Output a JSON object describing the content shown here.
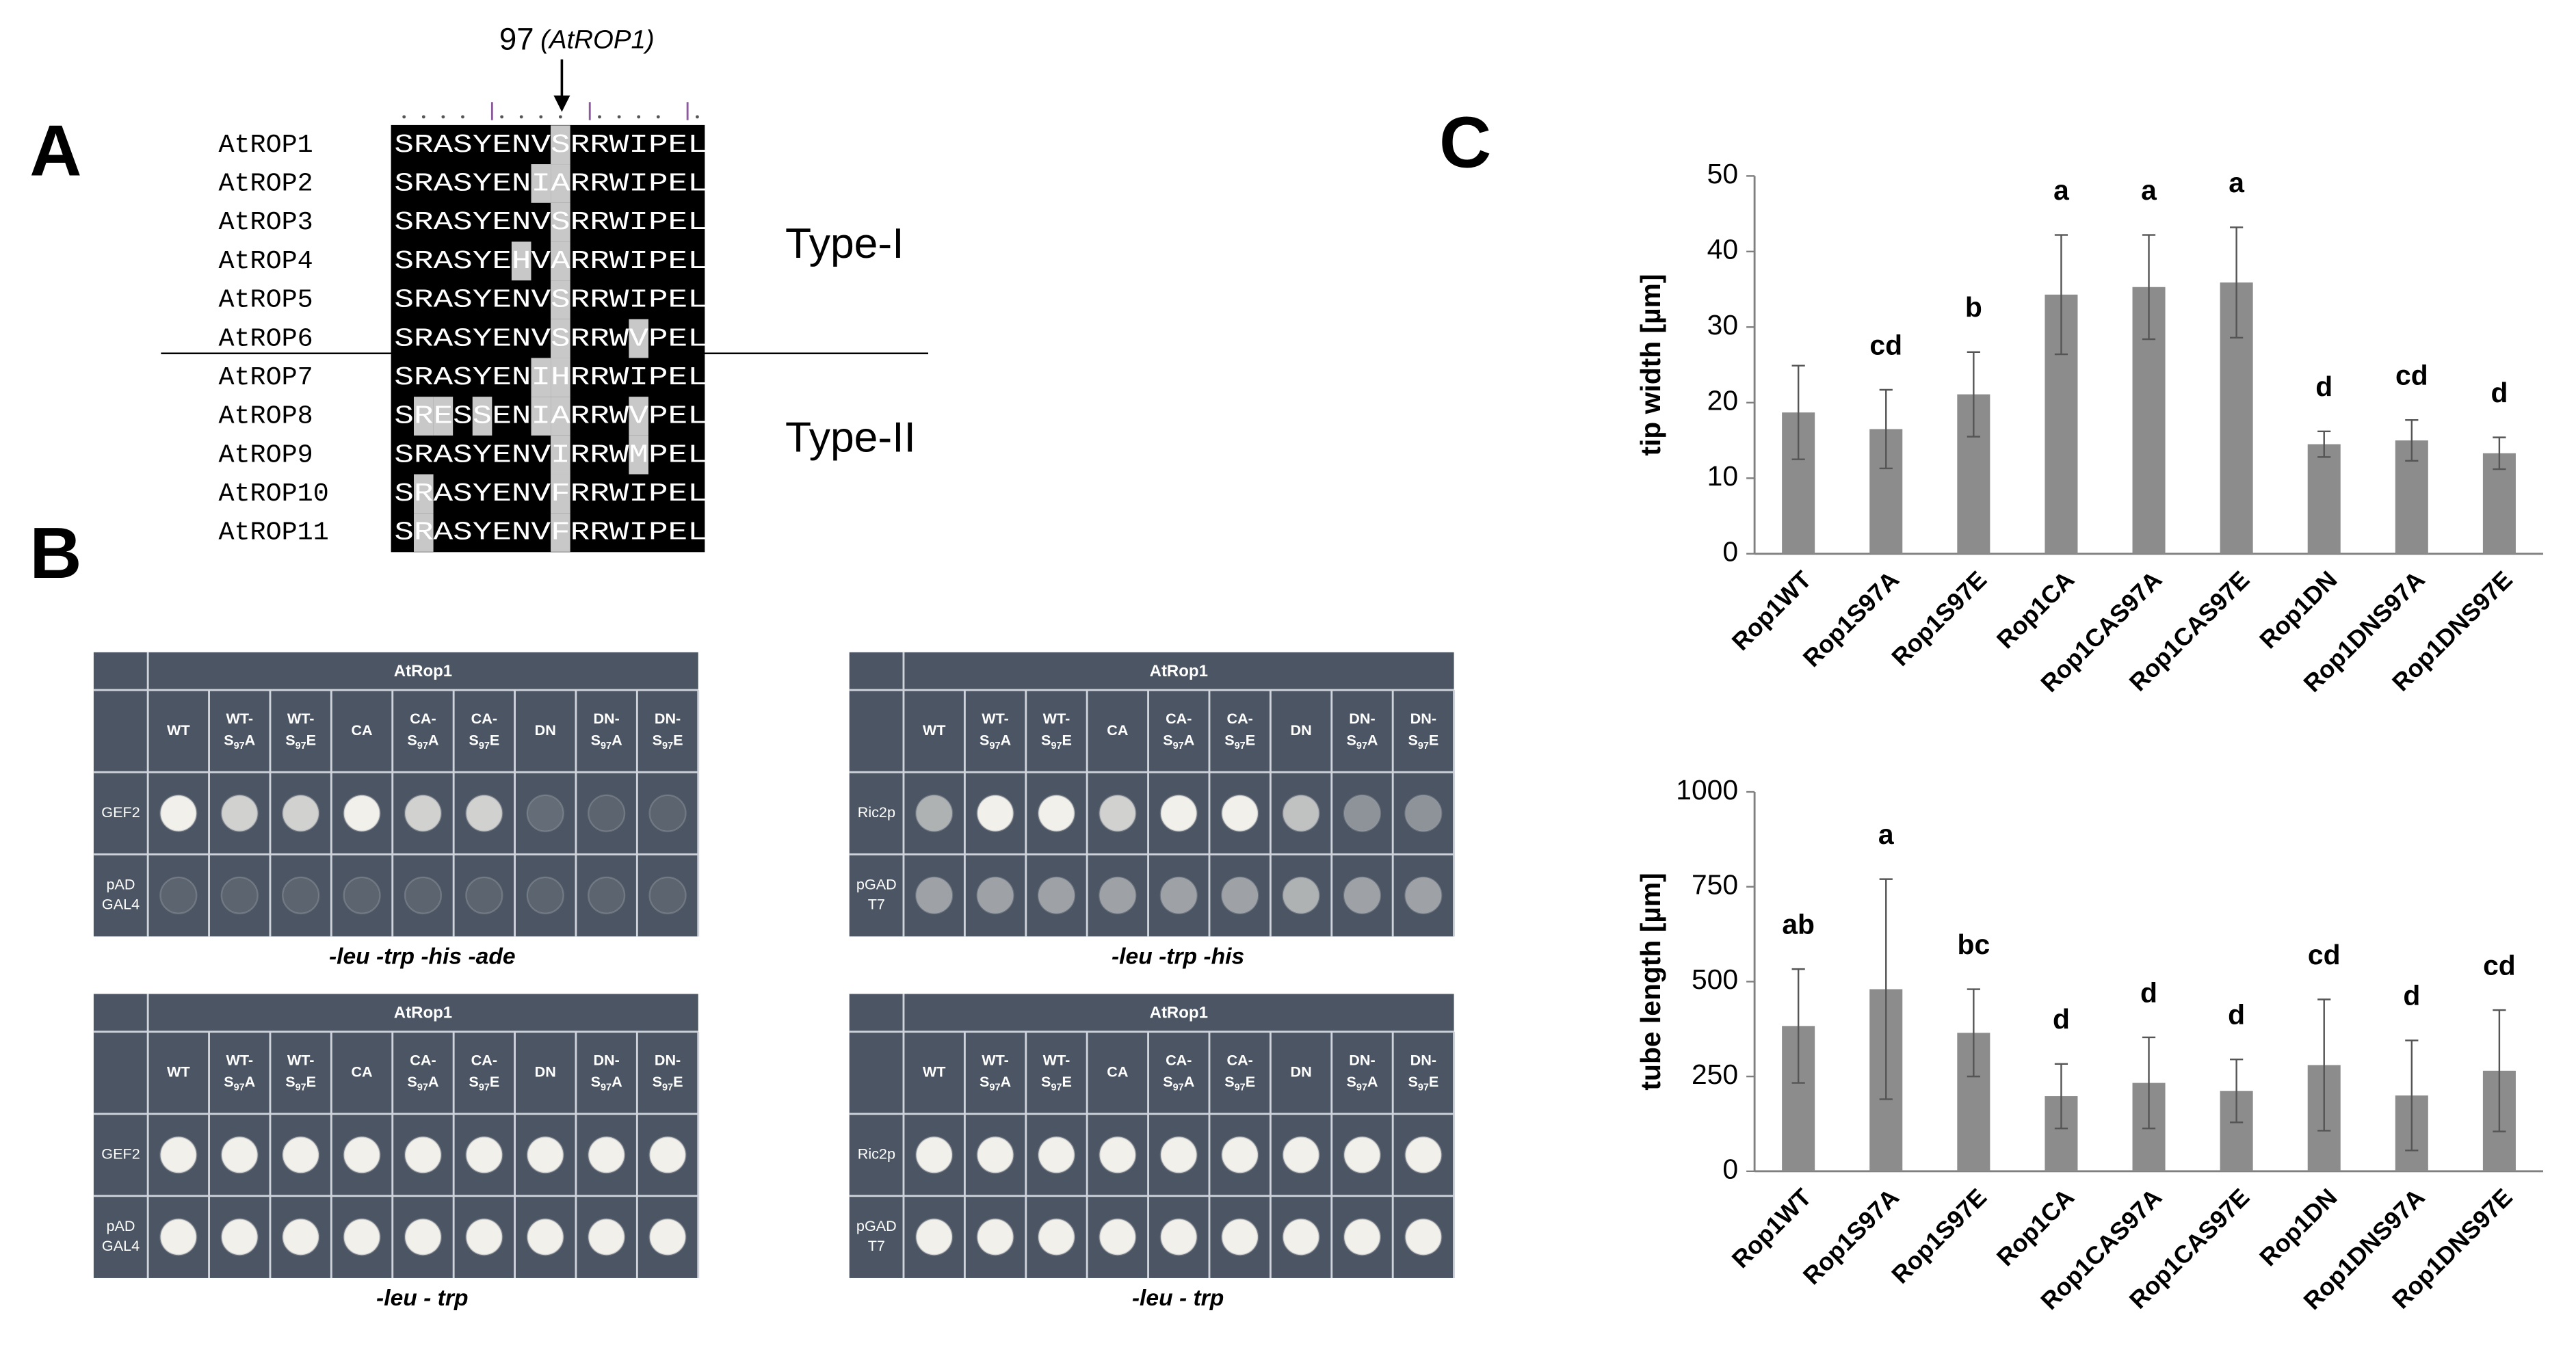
{
  "panels": {
    "A": {
      "letter": "A",
      "position": "97",
      "position_note": "(AtROP1)",
      "names": [
        "AtROP1",
        "AtROP2",
        "AtROP3",
        "AtROP4",
        "AtROP5",
        "AtROP6",
        "AtROP7",
        "AtROP8",
        "AtROP9",
        "AtROP10",
        "AtROP11"
      ],
      "sequences": [
        "SRASYENVSRRWIPEL",
        "SRASYENIARRWIPEL",
        "SRASYENVSRRWIPEL",
        "SRASYEHVARRWIPEL",
        "SRASYENVSRRWIPEL",
        "SRASYENVSRRWVPEL",
        "SRASYENIHRRWIPEL",
        "SRESSENIARRWVPEL",
        "SRASYENVIRRWMPEL",
        "SRASYENVFRRWIPEL",
        "SRASYENVFRRWIPEL"
      ],
      "group1": "Type-I",
      "group2": "Type-II"
    },
    "B": {
      "letter": "B",
      "bait": "AtRop1",
      "columns": [
        {
          "line1": "WT"
        },
        {
          "line1": "WT-",
          "pre": "S",
          "sub": "97",
          "post": "A"
        },
        {
          "line1": "WT-",
          "pre": "S",
          "sub": "97",
          "post": "E"
        },
        {
          "line1": "CA"
        },
        {
          "line1": "CA-",
          "pre": "S",
          "sub": "97",
          "post": "A"
        },
        {
          "line1": "CA-",
          "pre": "S",
          "sub": "97",
          "post": "E"
        },
        {
          "line1": "DN"
        },
        {
          "line1": "DN-",
          "pre": "S",
          "sub": "97",
          "post": "A"
        },
        {
          "line1": "DN-",
          "pre": "S",
          "sub": "97",
          "post": "E"
        }
      ],
      "plates": [
        {
          "rows": [
            [
              "GEF2"
            ],
            [
              "pAD",
              "GAL4"
            ]
          ],
          "caption": "-leu -trp -his -ade"
        },
        {
          "rows": [
            [
              "Ric2p"
            ],
            [
              "pGAD",
              "T7"
            ]
          ],
          "caption": "-leu -trp -his"
        },
        {
          "rows": [
            [
              "GEF2"
            ],
            [
              "pAD",
              "GAL4"
            ]
          ],
          "caption": "-leu - trp"
        },
        {
          "rows": [
            [
              "Ric2p"
            ],
            [
              "pGAD",
              "T7"
            ]
          ],
          "caption": "-leu - trp"
        }
      ]
    },
    "C": {
      "letter": "C"
    }
  },
  "chart_data": [
    {
      "type": "bar",
      "ylabel": "tip width [µm]",
      "categories": [
        "Rop1WT",
        "Rop1S97A",
        "Rop1S97E",
        "Rop1CA",
        "Rop1CAS97A",
        "Rop1CAS97E",
        "Rop1DN",
        "Rop1DNS97A",
        "Rop1DNS97E"
      ],
      "values": [
        18.7,
        16.5,
        21.1,
        34.3,
        35.3,
        35.9,
        14.5,
        15.0,
        13.3
      ],
      "errors": [
        6.2,
        5.2,
        5.6,
        7.9,
        6.9,
        7.3,
        1.7,
        2.7,
        2.1
      ],
      "annotations": [
        null,
        "cd",
        "b",
        "a",
        "a",
        "a",
        "d",
        "cd",
        "d"
      ],
      "ylim": [
        0,
        50
      ],
      "yticks": [
        0,
        10,
        20,
        30,
        40,
        50
      ],
      "color": "#8c8c8c"
    },
    {
      "type": "bar",
      "ylabel": "tube length [µm]",
      "categories": [
        "Rop1WT",
        "Rop1S97A",
        "Rop1S97E",
        "Rop1CA",
        "Rop1CAS97A",
        "Rop1CAS97E",
        "Rop1DN",
        "Rop1DNS97A",
        "Rop1DNS97E"
      ],
      "values": [
        383,
        480,
        365,
        198,
        233,
        212,
        280,
        200,
        265
      ],
      "errors": [
        150,
        290,
        115,
        85,
        120,
        83,
        173,
        145,
        160
      ],
      "annotations": [
        "ab",
        "a",
        "bc",
        "d",
        "d",
        "d",
        "cd",
        "d",
        "cd"
      ],
      "ylim": [
        0,
        1000
      ],
      "yticks": [
        0,
        250,
        500,
        750,
        1000
      ],
      "color": "#8c8c8c"
    }
  ]
}
